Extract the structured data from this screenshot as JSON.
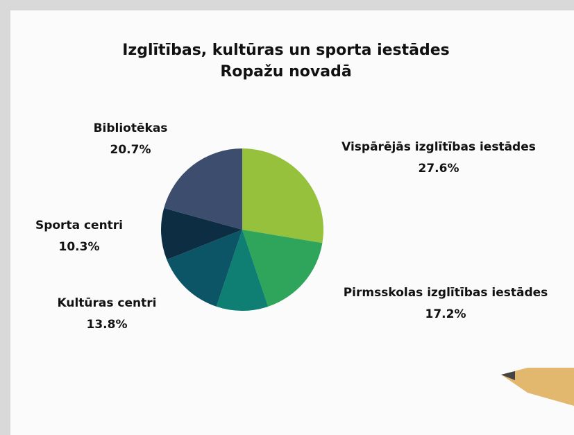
{
  "chart_data": {
    "type": "pie",
    "title": [
      "Izglītības, kultūras un sporta iestādes",
      "Ropažu novadā"
    ],
    "categories": [
      "Vispārējās izglītības iestādes",
      "Pirmsskolas izglītības iestādes",
      null,
      "Kultūras centri",
      "Sporta centri",
      "Bibliotēkas"
    ],
    "values": [
      27.6,
      17.2,
      10.3,
      13.8,
      10.3,
      20.7
    ],
    "value_labels": [
      "27.6%",
      "17.2%",
      null,
      "13.8%",
      "10.3%",
      "20.7%"
    ],
    "colors": [
      "#95c13d",
      "#2ea55a",
      "#0e7f72",
      "#0b5566",
      "#0c2d42",
      "#3d4d6e"
    ]
  }
}
